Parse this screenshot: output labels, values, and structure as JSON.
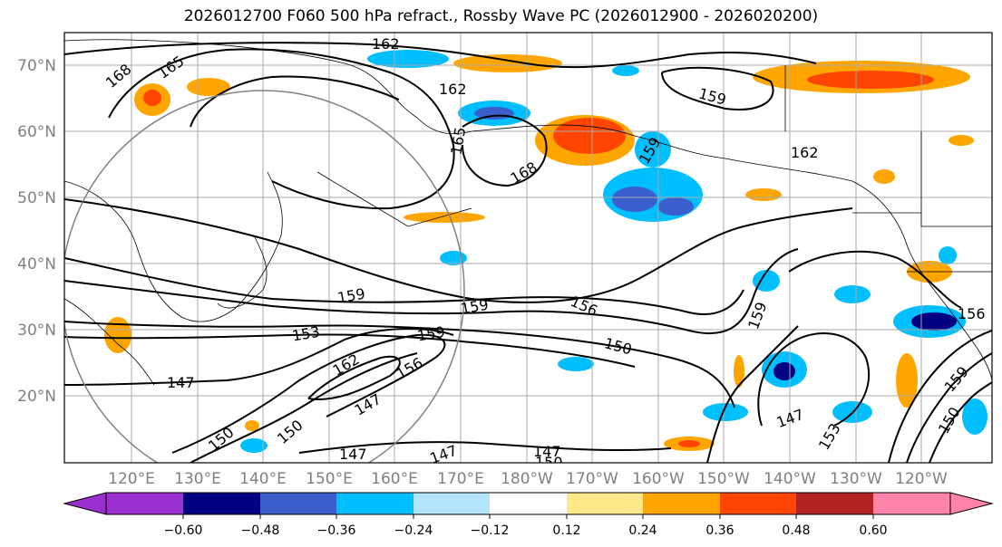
{
  "title": "2026012700 F060 500 hPa refract., Rossby Wave PC (2026012900 - 2026020200)",
  "lat_labels": [
    "70°N",
    "60°N",
    "50°N",
    "40°N",
    "30°N",
    "20°N"
  ],
  "lon_labels": [
    "120°E",
    "130°E",
    "140°E",
    "150°E",
    "160°E",
    "170°E",
    "180°W",
    "170°W",
    "160°W",
    "150°W",
    "140°W",
    "130°W",
    "120°W"
  ],
  "colorbar": {
    "colors": [
      "#9b30d0",
      "#000080",
      "#3a5fcd",
      "#00bfff",
      "#b3e5fc",
      "#ffffff",
      "#ffe88a",
      "#ffa500",
      "#ff4500",
      "#b22222",
      "#ff85a8"
    ],
    "ticks": [
      "−0.60",
      "−0.48",
      "−0.36",
      "−0.24",
      "−0.12",
      "0.12",
      "0.24",
      "0.36",
      "0.48",
      "0.60"
    ]
  },
  "contour_labels": [
    "162",
    "165",
    "168",
    "162",
    "159",
    "165",
    "168",
    "159",
    "162",
    "159",
    "153",
    "159",
    "156",
    "150",
    "159",
    "147",
    "162",
    "156",
    "147",
    "150",
    "150",
    "147",
    "147",
    "147",
    "150",
    "159",
    "147",
    "153",
    "156",
    "159",
    "150"
  ]
}
